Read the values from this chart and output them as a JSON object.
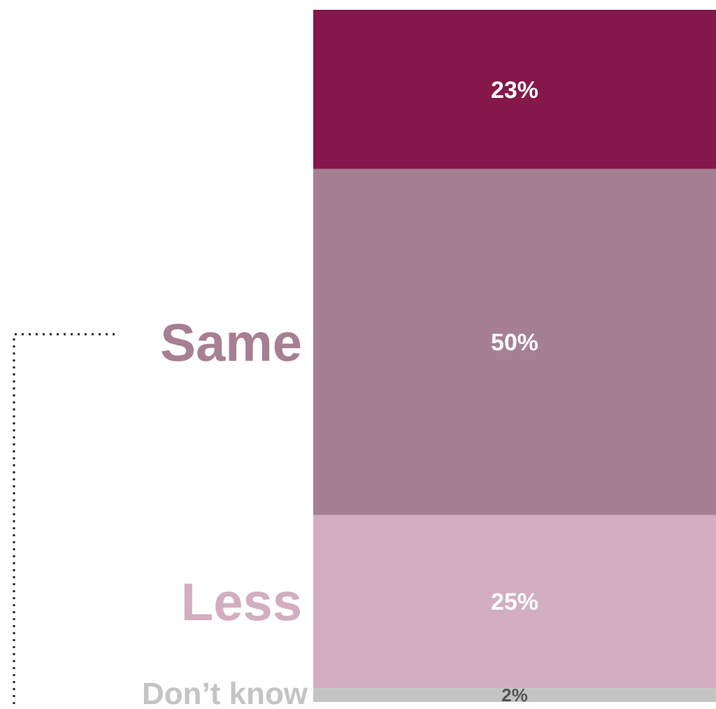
{
  "chart_data": {
    "type": "bar",
    "stacked": true,
    "categories": [
      null
    ],
    "series": [
      {
        "name": "Don’t know",
        "color": "#c4c4c4",
        "values": [
          2
        ],
        "value_labels": [
          "2%"
        ]
      },
      {
        "name": "Less",
        "color": "#d2aec0",
        "values": [
          25
        ],
        "value_labels": [
          "25%"
        ]
      },
      {
        "name": "Same",
        "color": "#a67f93",
        "values": [
          50
        ],
        "value_labels": [
          "50%"
        ]
      },
      {
        "color": "#85174b",
        "values": [
          23
        ],
        "value_labels": [
          "23%"
        ]
      }
    ]
  }
}
